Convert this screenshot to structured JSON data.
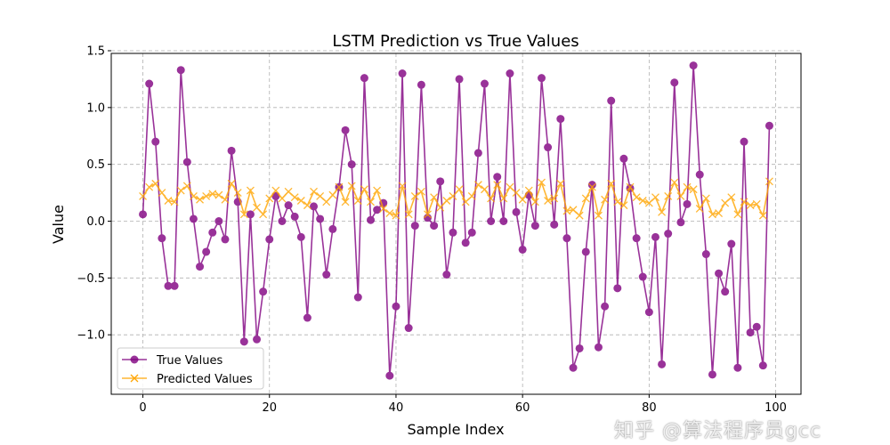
{
  "chart_data": {
    "type": "line",
    "title": "LSTM Prediction vs True Values",
    "xlabel": "Sample Index",
    "ylabel": "Value",
    "xlim": [
      -5,
      104
    ],
    "ylim": [
      -1.5,
      1.5
    ],
    "xticks": [
      "0",
      "20",
      "40",
      "60",
      "80",
      "100"
    ],
    "xtick_values": [
      0,
      20,
      40,
      60,
      80,
      100
    ],
    "yticks": [
      "−1.0",
      "−0.5",
      "0.0",
      "0.5",
      "1.0",
      "1.5"
    ],
    "ytick_values": [
      -1.0,
      -0.5,
      0.0,
      0.5,
      1.0,
      1.5
    ],
    "grid": true,
    "legend_placement": "lower-left",
    "series": [
      {
        "name": "True Values",
        "color": "#800080",
        "marker": "circle",
        "values": [
          0.06,
          1.21,
          0.7,
          -0.15,
          -0.57,
          -0.57,
          1.33,
          0.52,
          0.02,
          -0.4,
          -0.27,
          -0.1,
          0.0,
          -0.16,
          0.62,
          0.17,
          -1.06,
          0.06,
          -1.04,
          -0.62,
          -0.16,
          0.22,
          0.0,
          0.14,
          0.04,
          -0.14,
          -0.85,
          0.13,
          0.02,
          -0.47,
          -0.07,
          0.3,
          0.8,
          0.5,
          -0.67,
          1.26,
          0.01,
          0.1,
          0.16,
          -1.36,
          -0.75,
          1.3,
          -0.94,
          -0.04,
          1.2,
          0.03,
          -0.04,
          0.35,
          -0.47,
          -0.1,
          1.25,
          -0.19,
          -0.1,
          0.6,
          1.21,
          0.0,
          0.39,
          0.0,
          1.3,
          0.08,
          -0.25,
          0.23,
          -0.04,
          1.26,
          0.65,
          -0.03,
          0.9,
          -0.15,
          -1.29,
          -1.12,
          -0.27,
          0.32,
          -1.11,
          -0.75,
          1.06,
          -0.59,
          0.55,
          0.29,
          -0.15,
          -0.49,
          -0.8,
          -0.14,
          -1.26,
          -0.11,
          1.22,
          -0.01,
          0.15,
          1.37,
          0.41,
          -0.29,
          -1.35,
          -0.46,
          -0.62,
          -0.2,
          -1.29,
          0.7,
          -0.98,
          -0.93,
          -1.27,
          0.84
        ]
      },
      {
        "name": "Predicted Values",
        "color": "#FFA500",
        "marker": "x",
        "values": [
          0.22,
          0.3,
          0.33,
          0.25,
          0.18,
          0.17,
          0.27,
          0.31,
          0.22,
          0.19,
          0.22,
          0.24,
          0.23,
          0.19,
          0.33,
          0.25,
          0.06,
          0.27,
          0.12,
          0.06,
          0.2,
          0.27,
          0.2,
          0.26,
          0.21,
          0.18,
          0.14,
          0.26,
          0.22,
          0.17,
          0.23,
          0.3,
          0.17,
          0.31,
          0.18,
          0.28,
          0.17,
          0.27,
          0.11,
          0.07,
          0.05,
          0.31,
          0.06,
          0.22,
          0.26,
          0.06,
          0.21,
          0.12,
          0.18,
          0.22,
          0.28,
          0.17,
          0.22,
          0.32,
          0.28,
          0.2,
          0.32,
          0.2,
          0.3,
          0.25,
          0.19,
          0.27,
          0.17,
          0.34,
          0.18,
          0.2,
          0.33,
          0.09,
          0.1,
          0.05,
          0.2,
          0.3,
          0.05,
          0.19,
          0.33,
          0.17,
          0.14,
          0.3,
          0.21,
          0.18,
          0.16,
          0.21,
          0.08,
          0.22,
          0.34,
          0.22,
          0.3,
          0.28,
          0.11,
          0.2,
          0.06,
          0.07,
          0.16,
          0.21,
          0.06,
          0.17,
          0.14,
          0.15,
          0.05,
          0.35
        ]
      }
    ]
  },
  "watermark": "知乎 @算法程序员gcc"
}
